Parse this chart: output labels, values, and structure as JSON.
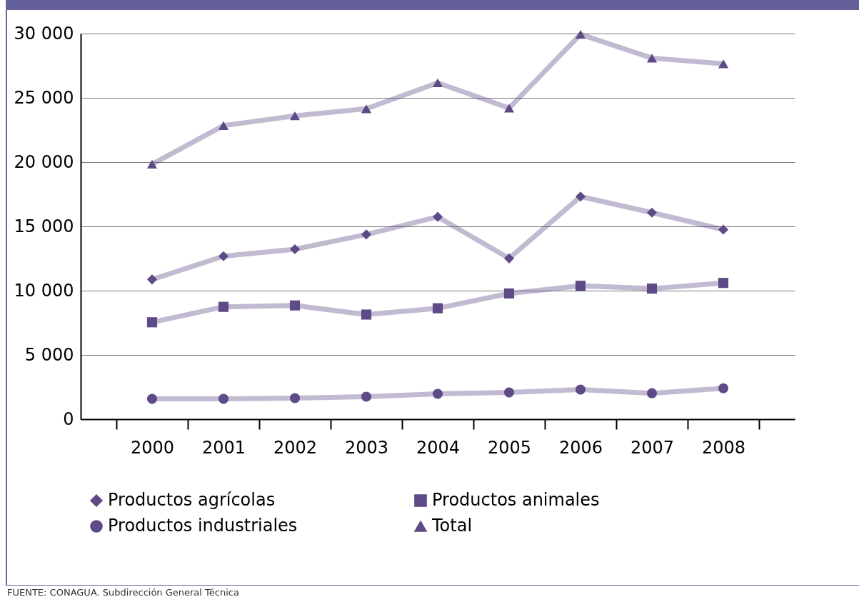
{
  "chart_data": {
    "type": "line",
    "categories": [
      "2000",
      "2001",
      "2002",
      "2003",
      "2004",
      "2005",
      "2006",
      "2007",
      "2008"
    ],
    "series": [
      {
        "name": "Productos agrícolas",
        "color": "#5e4a86",
        "marker": "diamond",
        "values": [
          10870,
          12680,
          13220,
          14370,
          15740,
          12510,
          17320,
          16070,
          14750
        ]
      },
      {
        "name": "Productos animales",
        "color": "#5e4a86",
        "marker": "square",
        "values": [
          7540,
          8740,
          8850,
          8140,
          8630,
          9780,
          10380,
          10160,
          10600
        ]
      },
      {
        "name": "Productos industriales",
        "color": "#5e4a86",
        "marker": "circle",
        "values": [
          1580,
          1580,
          1640,
          1750,
          1970,
          2080,
          2300,
          2020,
          2400
        ]
      },
      {
        "name": "Total",
        "color": "#5e4a86",
        "marker": "triangle",
        "values": [
          19840,
          22840,
          23600,
          24150,
          26170,
          24200,
          29940,
          28090,
          27650
        ]
      }
    ],
    "ylim": [
      0,
      30000
    ],
    "yticks": [
      0,
      5000,
      10000,
      15000,
      20000,
      25000,
      30000
    ],
    "grid": "y",
    "legend": "bottom",
    "line_style": "solid",
    "annotations": [
      "FUENTE: CONAGUA. Subdirección General Técnica"
    ]
  }
}
